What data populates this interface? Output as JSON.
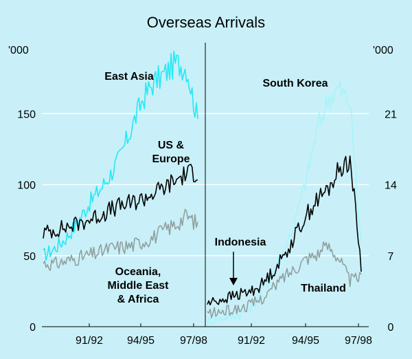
{
  "chart_data": [
    {
      "type": "line",
      "title": "Overseas Arrivals",
      "ylabel": "'000",
      "ylim": [
        0,
        200
      ],
      "yticks": [
        0,
        50,
        100,
        150
      ],
      "xticks": [
        "91/92",
        "94/95",
        "97/98"
      ],
      "x_start": "1989-01",
      "x_end": "1998-03",
      "grid": true,
      "series": [
        {
          "name": "East Asia",
          "color": "#22e8f5",
          "values": [
            50,
            55,
            62,
            72,
            85,
            95,
            106,
            120,
            140,
            160,
            172,
            178,
            186,
            182,
            145
          ],
          "label_at": "top-center"
        },
        {
          "name": "US & Europe",
          "color": "#000000",
          "values": [
            66,
            68,
            70,
            72,
            75,
            78,
            82,
            85,
            87,
            90,
            94,
            98,
            103,
            108,
            109
          ],
          "label_at": "center-right",
          "label_lines": [
            "US &",
            "Europe"
          ]
        },
        {
          "name": "Oceania, Middle East & Africa",
          "color": "#909f9f",
          "values": [
            45,
            44,
            46,
            48,
            50,
            52,
            55,
            56,
            57,
            60,
            63,
            68,
            72,
            78,
            72
          ],
          "label_at": "bottom-center",
          "label_lines": [
            "Oceania,",
            "Middle East",
            "& Africa"
          ]
        }
      ]
    },
    {
      "type": "line",
      "ylabel": "'000",
      "ylim": [
        0,
        28
      ],
      "yticks": [
        0,
        7,
        14,
        21
      ],
      "xticks": [
        "91/92",
        "94/95",
        "97/98"
      ],
      "x_start": "1989-01",
      "x_end": "1998-03",
      "grid": true,
      "series": [
        {
          "name": "South Korea",
          "color": "#a8f4fb",
          "values": [
            0.5,
            0.8,
            1.0,
            1.2,
            2.0,
            3.5,
            5.5,
            7.5,
            10.5,
            14.5,
            19.5,
            22.5,
            23.5,
            22.0,
            8.0
          ],
          "label_at": "top"
        },
        {
          "name": "Indonesia",
          "color": "#000000",
          "values": [
            2.3,
            2.6,
            2.9,
            3.2,
            3.5,
            4.2,
            5.5,
            7.0,
            9.0,
            11.0,
            12.5,
            13.5,
            15.5,
            16.5,
            6.0
          ],
          "label_at": "arrow"
        },
        {
          "name": "Thailand",
          "color": "#909f9f",
          "values": [
            1.3,
            1.4,
            1.6,
            1.8,
            2.2,
            2.8,
            3.8,
            5.0,
            5.8,
            6.8,
            7.2,
            8.0,
            6.8,
            4.5,
            5.0
          ],
          "label_at": "bottom-right"
        }
      ]
    }
  ]
}
